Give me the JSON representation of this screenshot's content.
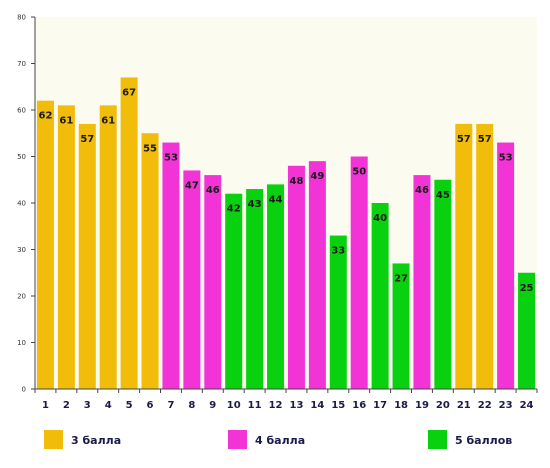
{
  "chart_data": {
    "type": "bar",
    "categories": [
      "1",
      "2",
      "3",
      "4",
      "5",
      "6",
      "7",
      "8",
      "9",
      "10",
      "11",
      "12",
      "13",
      "14",
      "15",
      "16",
      "17",
      "18",
      "19",
      "20",
      "21",
      "22",
      "23",
      "24"
    ],
    "values": [
      62,
      61,
      57,
      61,
      67,
      55,
      53,
      47,
      46,
      42,
      43,
      44,
      48,
      49,
      33,
      50,
      40,
      27,
      46,
      45,
      57,
      57,
      53,
      25
    ],
    "groups": [
      "3",
      "3",
      "3",
      "3",
      "3",
      "3",
      "4",
      "4",
      "4",
      "5",
      "5",
      "5",
      "4",
      "4",
      "5",
      "4",
      "5",
      "5",
      "4",
      "5",
      "3",
      "3",
      "4",
      "5"
    ],
    "legend": [
      {
        "key": "3",
        "name": "3 балла",
        "color": "#f2bd0a"
      },
      {
        "key": "4",
        "name": "4 балла",
        "color": "#f234d6"
      },
      {
        "key": "5",
        "name": "5 баллов",
        "color": "#0ad10f"
      }
    ],
    "yticks": [
      "0",
      "10",
      "20",
      "30",
      "40",
      "50",
      "60",
      "70",
      "80"
    ],
    "ylim": [
      0,
      80
    ],
    "grid": false,
    "legend_position": "bottom",
    "plot_background": "#fbfbef"
  }
}
